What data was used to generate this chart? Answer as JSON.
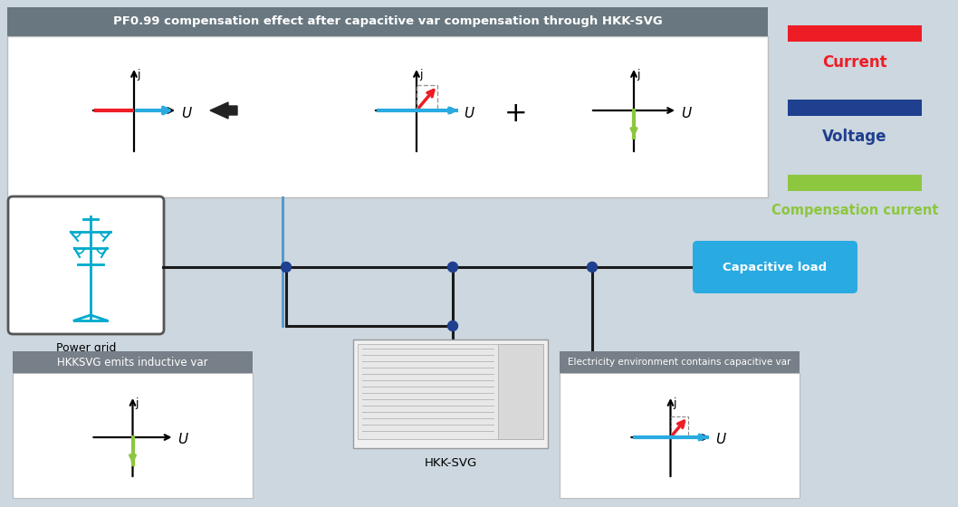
{
  "bg_color": "#ccd7df",
  "title_box_color": "#697880",
  "title_text": "PF0.99 compensation effect after capacitive var compensation through HKK-SVG",
  "legend_red_color": "#ee1c25",
  "legend_blue_color": "#1f3f8f",
  "legend_green_color": "#8dc63f",
  "legend_current_text": "Current",
  "legend_voltage_text": "Voltage",
  "legend_comp_text": "Compensation current",
  "red_color": "#ee1c25",
  "cyan_color": "#29abe2",
  "dark_blue_color": "#1f3f8f",
  "green_color": "#8dc63f",
  "capacitive_load_text": "Capacitive load",
  "power_grid_text": "Power grid",
  "hkk_svg_text": "HKK-SVG",
  "hkksvg_label": "HKKSVG emits inductive var",
  "elec_env_label": "Electricity environment contains capacitive var",
  "line_color": "#1a1a1a",
  "dot_color": "#1f3f8f",
  "panel_gray": "#778088",
  "white": "#ffffff"
}
